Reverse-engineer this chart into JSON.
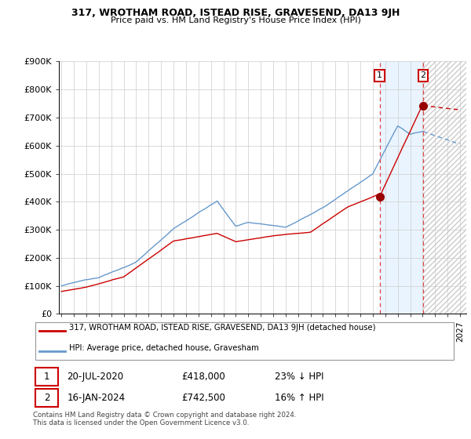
{
  "title": "317, WROTHAM ROAD, ISTEAD RISE, GRAVESEND, DA13 9JH",
  "subtitle": "Price paid vs. HM Land Registry's House Price Index (HPI)",
  "legend_line1": "317, WROTHAM ROAD, ISTEAD RISE, GRAVESEND, DA13 9JH (detached house)",
  "legend_line2": "HPI: Average price, detached house, Gravesham",
  "transaction1_date": "20-JUL-2020",
  "transaction1_price": "£418,000",
  "transaction1_hpi": "23% ↓ HPI",
  "transaction2_date": "16-JAN-2024",
  "transaction2_price": "£742,500",
  "transaction2_hpi": "16% ↑ HPI",
  "footer": "Contains HM Land Registry data © Crown copyright and database right 2024.\nThis data is licensed under the Open Government Licence v3.0.",
  "red_color": "#cc0000",
  "blue_color": "#6699cc",
  "ylim": [
    0,
    900000
  ],
  "yticks": [
    0,
    100000,
    200000,
    300000,
    400000,
    500000,
    600000,
    700000,
    800000,
    900000
  ],
  "ytick_labels": [
    "£0",
    "£100K",
    "£200K",
    "£300K",
    "£400K",
    "£500K",
    "£600K",
    "£700K",
    "£800K",
    "£900K"
  ],
  "vline1_x": 2020.55,
  "vline2_x": 2024.04,
  "marker1_y": 418000,
  "marker2_y": 742500,
  "xmin": 1994.8,
  "xmax": 2027.5
}
